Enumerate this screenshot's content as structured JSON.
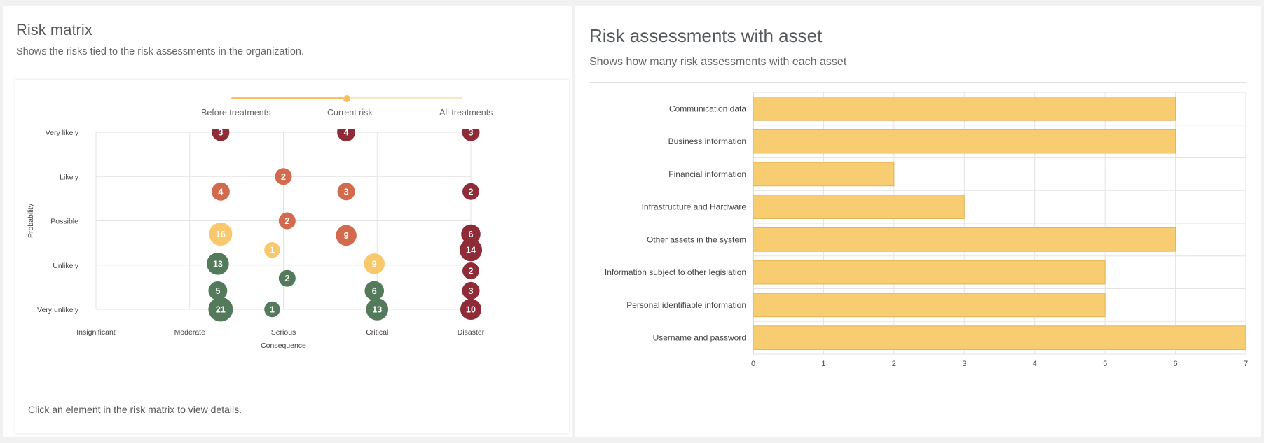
{
  "left_panel": {
    "title": "Risk matrix",
    "subtitle": "Shows the risks tied to the risk assessments in the organization.",
    "slider": {
      "labels": [
        "Before treatments",
        "Current risk",
        "All treatments"
      ],
      "selected": "Current risk"
    },
    "footer": "Click an element in the risk matrix to view details."
  },
  "right_panel": {
    "title": "Risk assessments with asset",
    "subtitle": "Shows how many risk assessments with each asset"
  },
  "colors": {
    "green": "#537a5a",
    "yellow": "#f8c96c",
    "orange": "#d26a4e",
    "red": "#8e2b37",
    "bar_fill": "#f8cd72",
    "bar_stroke": "#e4b253"
  },
  "chart_data": [
    {
      "type": "scatter",
      "xlabel": "Consequence",
      "ylabel": "Probability",
      "x_categories": [
        "Insignificant",
        "Moderate",
        "Serious",
        "Critical",
        "Disaster"
      ],
      "y_categories": [
        "Very unlikely",
        "Unlikely",
        "Possible",
        "Likely",
        "Very likely"
      ],
      "grid": true,
      "points": [
        {
          "x": 2.33,
          "y": 5,
          "value": 3,
          "color": "red"
        },
        {
          "x": 3.67,
          "y": 5,
          "value": 4,
          "color": "red"
        },
        {
          "x": 5,
          "y": 5,
          "value": 3,
          "color": "red"
        },
        {
          "x": 3,
          "y": 4,
          "value": 2,
          "color": "orange"
        },
        {
          "x": 2.33,
          "y": 3.66,
          "value": 4,
          "color": "orange"
        },
        {
          "x": 3.67,
          "y": 3.66,
          "value": 3,
          "color": "orange"
        },
        {
          "x": 5,
          "y": 3.66,
          "value": 2,
          "color": "red"
        },
        {
          "x": 3.04,
          "y": 3,
          "value": 2,
          "color": "orange"
        },
        {
          "x": 2.33,
          "y": 2.7,
          "value": 16,
          "color": "yellow"
        },
        {
          "x": 3.67,
          "y": 2.67,
          "value": 9,
          "color": "orange"
        },
        {
          "x": 5,
          "y": 2.7,
          "value": 6,
          "color": "red"
        },
        {
          "x": 2.88,
          "y": 2.34,
          "value": 1,
          "color": "yellow"
        },
        {
          "x": 5,
          "y": 2.34,
          "value": 14,
          "color": "red"
        },
        {
          "x": 2.3,
          "y": 2.03,
          "value": 13,
          "color": "green"
        },
        {
          "x": 3.97,
          "y": 2.03,
          "value": 9,
          "color": "yellow"
        },
        {
          "x": 5,
          "y": 1.87,
          "value": 2,
          "color": "red"
        },
        {
          "x": 3.04,
          "y": 1.7,
          "value": 2,
          "color": "green"
        },
        {
          "x": 2.3,
          "y": 1.42,
          "value": 5,
          "color": "green"
        },
        {
          "x": 3.97,
          "y": 1.42,
          "value": 6,
          "color": "green"
        },
        {
          "x": 5,
          "y": 1.42,
          "value": 3,
          "color": "red"
        },
        {
          "x": 2.33,
          "y": 1,
          "value": 21,
          "color": "green"
        },
        {
          "x": 2.88,
          "y": 1,
          "value": 1,
          "color": "green"
        },
        {
          "x": 4,
          "y": 1,
          "value": 13,
          "color": "green"
        },
        {
          "x": 5,
          "y": 1,
          "value": 10,
          "color": "red"
        }
      ]
    },
    {
      "type": "bar",
      "orientation": "horizontal",
      "categories": [
        "Communication data",
        "Business information",
        "Financial information",
        "Infrastructure and Hardware",
        "Other assets in the system",
        "Information subject to other legislation",
        "Personal identifiable information",
        "Username and password"
      ],
      "values": [
        6,
        6,
        2,
        3,
        6,
        5,
        5,
        7
      ],
      "xlim": [
        0,
        7
      ],
      "x_ticks": [
        0,
        1,
        2,
        3,
        4,
        5,
        6,
        7
      ],
      "grid": true
    }
  ]
}
